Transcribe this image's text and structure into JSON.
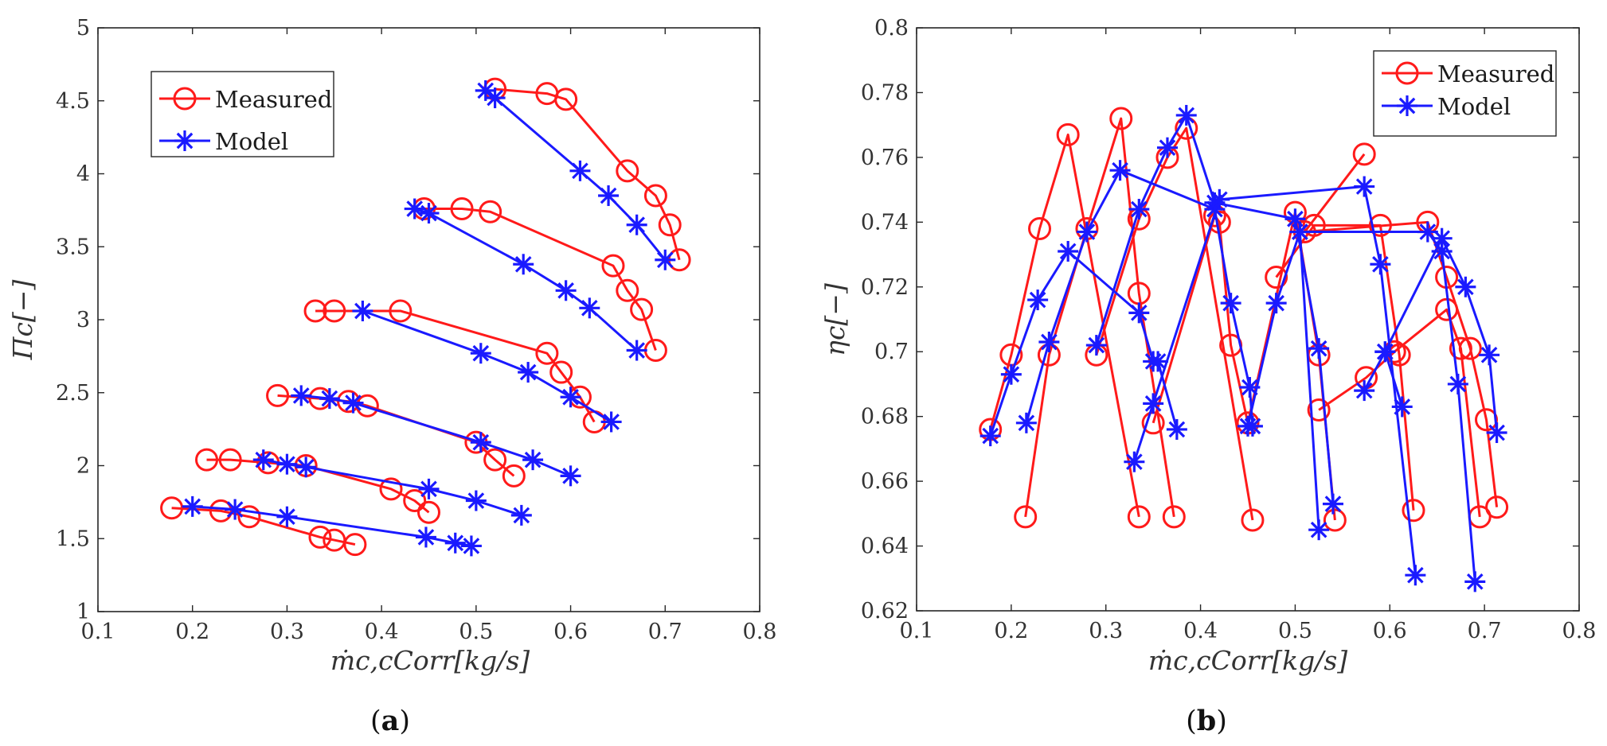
{
  "colors": {
    "measured": "#ff1a1a",
    "model": "#1a1aff",
    "axis": "#262626"
  },
  "chart_data": [
    {
      "id": "a",
      "type": "line",
      "caption": {
        "open": "(",
        "letter": "a",
        "close": ")"
      },
      "xlabel": "ṁc,cCorr[kg/s]",
      "ylabel": "Πc[−]",
      "xlim": [
        0.1,
        0.8
      ],
      "ylim": [
        1,
        5
      ],
      "xticks": [
        0.1,
        0.2,
        0.3,
        0.4,
        0.5,
        0.6,
        0.7,
        0.8
      ],
      "yticks": [
        1,
        1.5,
        2,
        2.5,
        3,
        3.5,
        4,
        4.5,
        5
      ],
      "xtick_labels": [
        "0.1",
        "0.2",
        "0.3",
        "0.4",
        "0.5",
        "0.6",
        "0.7",
        "0.8"
      ],
      "ytick_labels": [
        "1",
        "1.5",
        "2",
        "2.5",
        "3",
        "3.5",
        "4",
        "4.5",
        "5"
      ],
      "legend": {
        "position": "top-left",
        "items": [
          "Measured",
          "Model"
        ]
      },
      "series": [
        {
          "name": "Measured",
          "marker": "circle",
          "lines": [
            [
              [
                0.178,
                1.71
              ],
              [
                0.23,
                1.69
              ],
              [
                0.26,
                1.65
              ],
              [
                0.335,
                1.51
              ],
              [
                0.35,
                1.49
              ],
              [
                0.372,
                1.46
              ]
            ],
            [
              [
                0.215,
                2.04
              ],
              [
                0.24,
                2.04
              ],
              [
                0.28,
                2.02
              ],
              [
                0.32,
                2.0
              ],
              [
                0.41,
                1.84
              ],
              [
                0.435,
                1.76
              ],
              [
                0.45,
                1.68
              ]
            ],
            [
              [
                0.29,
                2.48
              ],
              [
                0.335,
                2.46
              ],
              [
                0.365,
                2.44
              ],
              [
                0.385,
                2.41
              ],
              [
                0.5,
                2.16
              ],
              [
                0.52,
                2.04
              ],
              [
                0.54,
                1.93
              ]
            ],
            [
              [
                0.33,
                3.06
              ],
              [
                0.35,
                3.06
              ],
              [
                0.42,
                3.06
              ],
              [
                0.575,
                2.77
              ],
              [
                0.59,
                2.64
              ],
              [
                0.61,
                2.47
              ],
              [
                0.625,
                2.3
              ]
            ],
            [
              [
                0.445,
                3.76
              ],
              [
                0.485,
                3.76
              ],
              [
                0.515,
                3.74
              ],
              [
                0.645,
                3.37
              ],
              [
                0.66,
                3.2
              ],
              [
                0.675,
                3.07
              ],
              [
                0.69,
                2.79
              ]
            ],
            [
              [
                0.52,
                4.58
              ],
              [
                0.575,
                4.55
              ],
              [
                0.595,
                4.51
              ],
              [
                0.66,
                4.02
              ],
              [
                0.69,
                3.85
              ],
              [
                0.705,
                3.65
              ],
              [
                0.715,
                3.41
              ]
            ]
          ]
        },
        {
          "name": "Model",
          "marker": "star",
          "lines": [
            [
              [
                0.2,
                1.72
              ],
              [
                0.245,
                1.7
              ],
              [
                0.3,
                1.65
              ],
              [
                0.447,
                1.51
              ],
              [
                0.478,
                1.47
              ],
              [
                0.495,
                1.45
              ]
            ],
            [
              [
                0.275,
                2.04
              ],
              [
                0.3,
                2.01
              ],
              [
                0.32,
                1.99
              ],
              [
                0.45,
                1.84
              ],
              [
                0.5,
                1.76
              ],
              [
                0.548,
                1.66
              ]
            ],
            [
              [
                0.315,
                2.48
              ],
              [
                0.345,
                2.46
              ],
              [
                0.37,
                2.43
              ],
              [
                0.505,
                2.16
              ],
              [
                0.56,
                2.04
              ],
              [
                0.6,
                1.93
              ]
            ],
            [
              [
                0.38,
                3.06
              ],
              [
                0.505,
                2.77
              ],
              [
                0.555,
                2.64
              ],
              [
                0.6,
                2.47
              ],
              [
                0.643,
                2.3
              ]
            ],
            [
              [
                0.435,
                3.76
              ],
              [
                0.45,
                3.73
              ],
              [
                0.55,
                3.38
              ],
              [
                0.595,
                3.2
              ],
              [
                0.62,
                3.08
              ],
              [
                0.67,
                2.79
              ]
            ],
            [
              [
                0.51,
                4.57
              ],
              [
                0.52,
                4.52
              ],
              [
                0.61,
                4.02
              ],
              [
                0.64,
                3.85
              ],
              [
                0.67,
                3.65
              ],
              [
                0.7,
                3.41
              ]
            ]
          ]
        }
      ]
    },
    {
      "id": "b",
      "type": "line",
      "caption": {
        "open": "(",
        "letter": "b",
        "close": ")"
      },
      "xlabel": "ṁc,cCorr[kg/s]",
      "ylabel": "ηc[−]",
      "xlim": [
        0.1,
        0.8
      ],
      "ylim": [
        0.62,
        0.8
      ],
      "xticks": [
        0.1,
        0.2,
        0.3,
        0.4,
        0.5,
        0.6,
        0.7,
        0.8
      ],
      "yticks": [
        0.62,
        0.64,
        0.66,
        0.68,
        0.7,
        0.72,
        0.74,
        0.76,
        0.78,
        0.8
      ],
      "xtick_labels": [
        "0.1",
        "0.2",
        "0.3",
        "0.4",
        "0.5",
        "0.6",
        "0.7",
        "0.8"
      ],
      "ytick_labels": [
        "0.62",
        "0.64",
        "0.66",
        "0.68",
        "0.7",
        "0.72",
        "0.74",
        "0.76",
        "0.78",
        "0.8"
      ],
      "legend": {
        "position": "top-right",
        "items": [
          "Measured",
          "Model"
        ]
      },
      "series": [
        {
          "name": "Measured",
          "marker": "circle",
          "lines": [
            [
              [
                0.178,
                0.676
              ],
              [
                0.2,
                0.699
              ],
              [
                0.23,
                0.738
              ],
              [
                0.26,
                0.767
              ],
              [
                0.335,
                0.649
              ]
            ],
            [
              [
                0.215,
                0.649
              ],
              [
                0.24,
                0.699
              ],
              [
                0.28,
                0.738
              ],
              [
                0.316,
                0.772
              ],
              [
                0.335,
                0.718
              ],
              [
                0.372,
                0.649
              ]
            ],
            [
              [
                0.29,
                0.699
              ],
              [
                0.335,
                0.741
              ],
              [
                0.365,
                0.76
              ],
              [
                0.385,
                0.769
              ],
              [
                0.455,
                0.648
              ]
            ],
            [
              [
                0.35,
                0.678
              ],
              [
                0.415,
                0.742
              ],
              [
                0.42,
                0.74
              ],
              [
                0.432,
                0.702
              ],
              [
                0.45,
                0.678
              ],
              [
                0.5,
                0.743
              ],
              [
                0.525,
                0.699
              ],
              [
                0.542,
                0.648
              ]
            ],
            [
              [
                0.48,
                0.723
              ],
              [
                0.52,
                0.739
              ],
              [
                0.59,
                0.739
              ],
              [
                0.61,
                0.699
              ],
              [
                0.625,
                0.651
              ]
            ],
            [
              [
                0.525,
                0.682
              ],
              [
                0.575,
                0.692
              ],
              [
                0.605,
                0.7
              ],
              [
                0.66,
                0.713
              ],
              [
                0.675,
                0.701
              ],
              [
                0.695,
                0.649
              ]
            ],
            [
              [
                0.573,
                0.761
              ],
              [
                0.51,
                0.737
              ],
              [
                0.64,
                0.74
              ],
              [
                0.66,
                0.723
              ],
              [
                0.685,
                0.701
              ],
              [
                0.702,
                0.679
              ],
              [
                0.713,
                0.652
              ]
            ]
          ]
        },
        {
          "name": "Model",
          "marker": "star",
          "lines": [
            [
              [
                0.178,
                0.674
              ],
              [
                0.2,
                0.693
              ],
              [
                0.228,
                0.716
              ],
              [
                0.26,
                0.731
              ],
              [
                0.335,
                0.712
              ],
              [
                0.35,
                0.697
              ]
            ],
            [
              [
                0.216,
                0.678
              ],
              [
                0.24,
                0.703
              ],
              [
                0.28,
                0.737
              ],
              [
                0.315,
                0.756
              ],
              [
                0.415,
                0.744
              ],
              [
                0.432,
                0.715
              ],
              [
                0.452,
                0.689
              ],
              [
                0.455,
                0.677
              ]
            ],
            [
              [
                0.29,
                0.702
              ],
              [
                0.335,
                0.744
              ],
              [
                0.365,
                0.763
              ],
              [
                0.385,
                0.773
              ],
              [
                0.415,
                0.746
              ],
              [
                0.5,
                0.741
              ],
              [
                0.525,
                0.701
              ],
              [
                0.54,
                0.653
              ]
            ],
            [
              [
                0.33,
                0.666
              ],
              [
                0.35,
                0.684
              ],
              [
                0.42,
                0.747
              ],
              [
                0.573,
                0.751
              ],
              [
                0.59,
                0.727
              ],
              [
                0.627,
                0.631
              ]
            ],
            [
              [
                0.355,
                0.697
              ],
              [
                0.375,
                0.676
              ]
            ],
            [
              [
                0.45,
                0.677
              ],
              [
                0.48,
                0.715
              ],
              [
                0.505,
                0.737
              ],
              [
                0.525,
                0.645
              ]
            ],
            [
              [
                0.505,
                0.737
              ],
              [
                0.64,
                0.737
              ],
              [
                0.655,
                0.731
              ],
              [
                0.672,
                0.69
              ],
              [
                0.69,
                0.629
              ]
            ],
            [
              [
                0.573,
                0.688
              ],
              [
                0.595,
                0.7
              ],
              [
                0.613,
                0.683
              ]
            ],
            [
              [
                0.595,
                0.7
              ],
              [
                0.655,
                0.735
              ],
              [
                0.68,
                0.72
              ],
              [
                0.705,
                0.699
              ],
              [
                0.713,
                0.675
              ]
            ]
          ]
        }
      ]
    }
  ]
}
